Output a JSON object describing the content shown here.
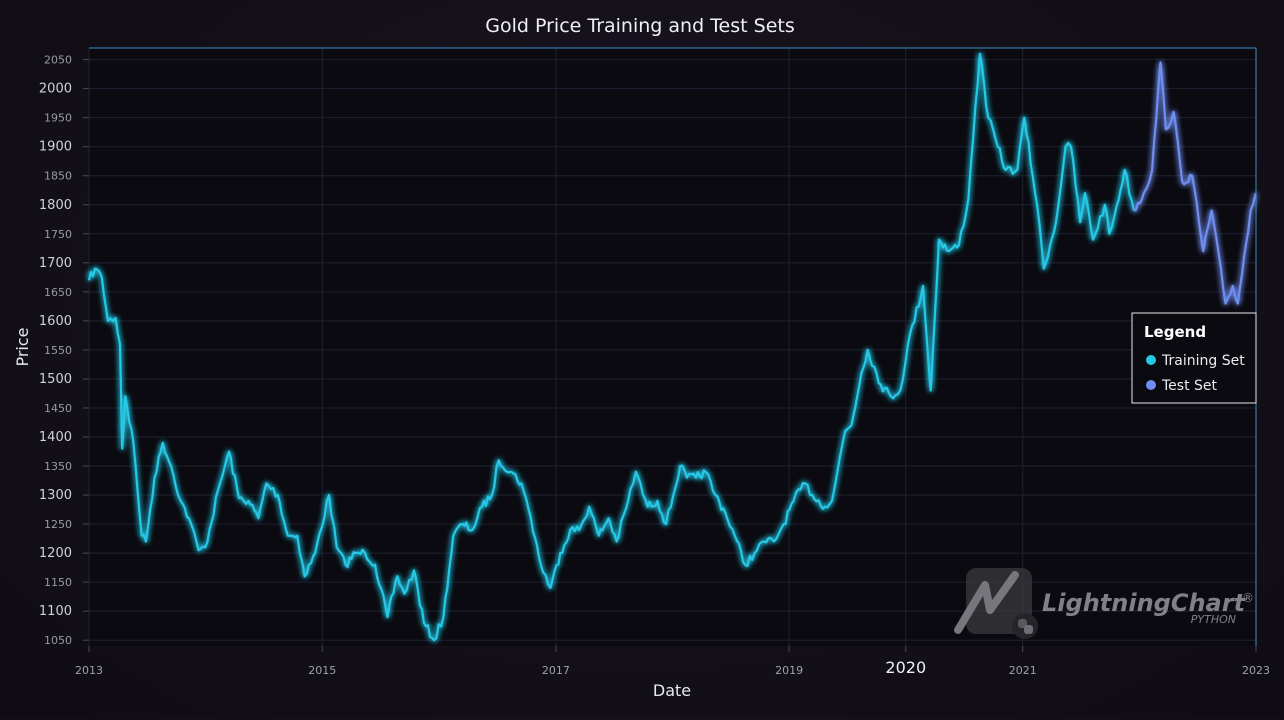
{
  "chart_data": {
    "type": "line",
    "title": "Gold Price Training and Test Sets",
    "xlabel": "Date",
    "ylabel": "Price",
    "x_ticks": [
      "2013",
      "2015",
      "2017",
      "2019",
      "2020",
      "2021",
      "2023"
    ],
    "xlim": [
      "2013-01-01",
      "2023-01-01"
    ],
    "ylim": [
      1040,
      2070
    ],
    "y_ticks": [
      1050,
      1100,
      1150,
      1200,
      1250,
      1300,
      1350,
      1400,
      1450,
      1500,
      1550,
      1600,
      1650,
      1700,
      1750,
      1800,
      1850,
      1900,
      1950,
      2000,
      2050
    ],
    "grid": true,
    "legend": {
      "title": "Legend",
      "placement": "right",
      "entries": [
        "Training Set",
        "Test Set"
      ]
    },
    "series": [
      {
        "name": "Training Set",
        "color": "#27c8e6",
        "x": [
          "2013-01-01",
          "2013-01-20",
          "2013-02-10",
          "2013-03-01",
          "2013-03-25",
          "2013-04-08",
          "2013-04-15",
          "2013-04-25",
          "2013-05-20",
          "2013-06-15",
          "2013-06-28",
          "2013-07-25",
          "2013-08-20",
          "2013-09-15",
          "2013-10-15",
          "2013-11-10",
          "2013-12-10",
          "2013-12-31",
          "2014-02-15",
          "2014-03-15",
          "2014-04-15",
          "2014-05-15",
          "2014-06-15",
          "2014-07-10",
          "2014-08-15",
          "2014-09-15",
          "2014-10-15",
          "2014-11-07",
          "2014-12-10",
          "2015-01-22",
          "2015-02-15",
          "2015-03-15",
          "2015-04-15",
          "2015-05-15",
          "2015-06-15",
          "2015-07-24",
          "2015-08-24",
          "2015-09-15",
          "2015-10-15",
          "2015-11-15",
          "2015-12-17",
          "2016-01-15",
          "2016-02-15",
          "2016-03-15",
          "2016-04-15",
          "2016-05-15",
          "2016-06-15",
          "2016-07-06",
          "2016-08-15",
          "2016-09-15",
          "2016-10-15",
          "2016-11-15",
          "2016-12-15",
          "2017-01-15",
          "2017-02-15",
          "2017-03-15",
          "2017-04-15",
          "2017-05-15",
          "2017-06-15",
          "2017-07-10",
          "2017-08-15",
          "2017-09-08",
          "2017-10-15",
          "2017-11-15",
          "2017-12-12",
          "2018-01-25",
          "2018-02-15",
          "2018-03-15",
          "2018-04-15",
          "2018-05-15",
          "2018-06-15",
          "2018-07-15",
          "2018-08-16",
          "2018-09-15",
          "2018-10-15",
          "2018-11-15",
          "2018-12-15",
          "2019-01-15",
          "2019-02-20",
          "2019-03-15",
          "2019-04-23",
          "2019-05-15",
          "2019-06-01",
          "2019-06-25",
          "2019-07-15",
          "2019-08-15",
          "2019-09-04",
          "2019-10-15",
          "2019-11-15",
          "2019-12-15",
          "2020-01-08",
          "2020-02-24",
          "2020-03-19",
          "2020-04-14",
          "2020-05-15",
          "2020-06-15",
          "2020-07-15",
          "2020-08-06",
          "2020-08-20",
          "2020-09-15",
          "2020-10-15",
          "2020-11-09",
          "2020-12-15",
          "2021-01-06",
          "2021-02-15",
          "2021-03-08",
          "2021-04-15",
          "2021-05-15",
          "2021-06-01",
          "2021-06-30",
          "2021-07-15",
          "2021-08-09",
          "2021-09-15",
          "2021-09-29",
          "2021-10-15",
          "2021-11-16",
          "2021-12-15"
        ],
        "values": [
          1670,
          1690,
          1675,
          1600,
          1605,
          1560,
          1380,
          1470,
          1390,
          1230,
          1220,
          1330,
          1390,
          1350,
          1290,
          1260,
          1205,
          1210,
          1320,
          1375,
          1295,
          1290,
          1260,
          1320,
          1300,
          1230,
          1230,
          1160,
          1200,
          1300,
          1210,
          1180,
          1200,
          1200,
          1180,
          1090,
          1160,
          1130,
          1170,
          1080,
          1050,
          1090,
          1230,
          1250,
          1240,
          1280,
          1300,
          1360,
          1340,
          1320,
          1260,
          1180,
          1140,
          1200,
          1240,
          1240,
          1280,
          1230,
          1260,
          1220,
          1290,
          1340,
          1280,
          1290,
          1250,
          1350,
          1330,
          1330,
          1340,
          1300,
          1270,
          1230,
          1180,
          1200,
          1220,
          1220,
          1250,
          1290,
          1320,
          1300,
          1280,
          1290,
          1340,
          1410,
          1420,
          1510,
          1550,
          1490,
          1470,
          1480,
          1560,
          1660,
          1480,
          1740,
          1720,
          1730,
          1810,
          1970,
          2060,
          1950,
          1900,
          1860,
          1860,
          1950,
          1800,
          1690,
          1770,
          1900,
          1900,
          1770,
          1820,
          1740,
          1800,
          1750,
          1780,
          1860,
          1790
        ]
      },
      {
        "name": "Test Set",
        "color": "#6f8ef0",
        "x": [
          "2021-12-15",
          "2022-01-15",
          "2022-02-10",
          "2022-03-08",
          "2022-03-25",
          "2022-04-18",
          "2022-05-15",
          "2022-06-15",
          "2022-07-20",
          "2022-08-15",
          "2022-09-28",
          "2022-10-20",
          "2022-11-05",
          "2022-12-15",
          "2022-12-31"
        ],
        "values": [
          1790,
          1820,
          1860,
          2045,
          1930,
          1960,
          1840,
          1850,
          1720,
          1790,
          1630,
          1660,
          1630,
          1790,
          1820
        ]
      }
    ],
    "watermark": {
      "text": "LightningChart",
      "sub": "PYTHON"
    }
  }
}
